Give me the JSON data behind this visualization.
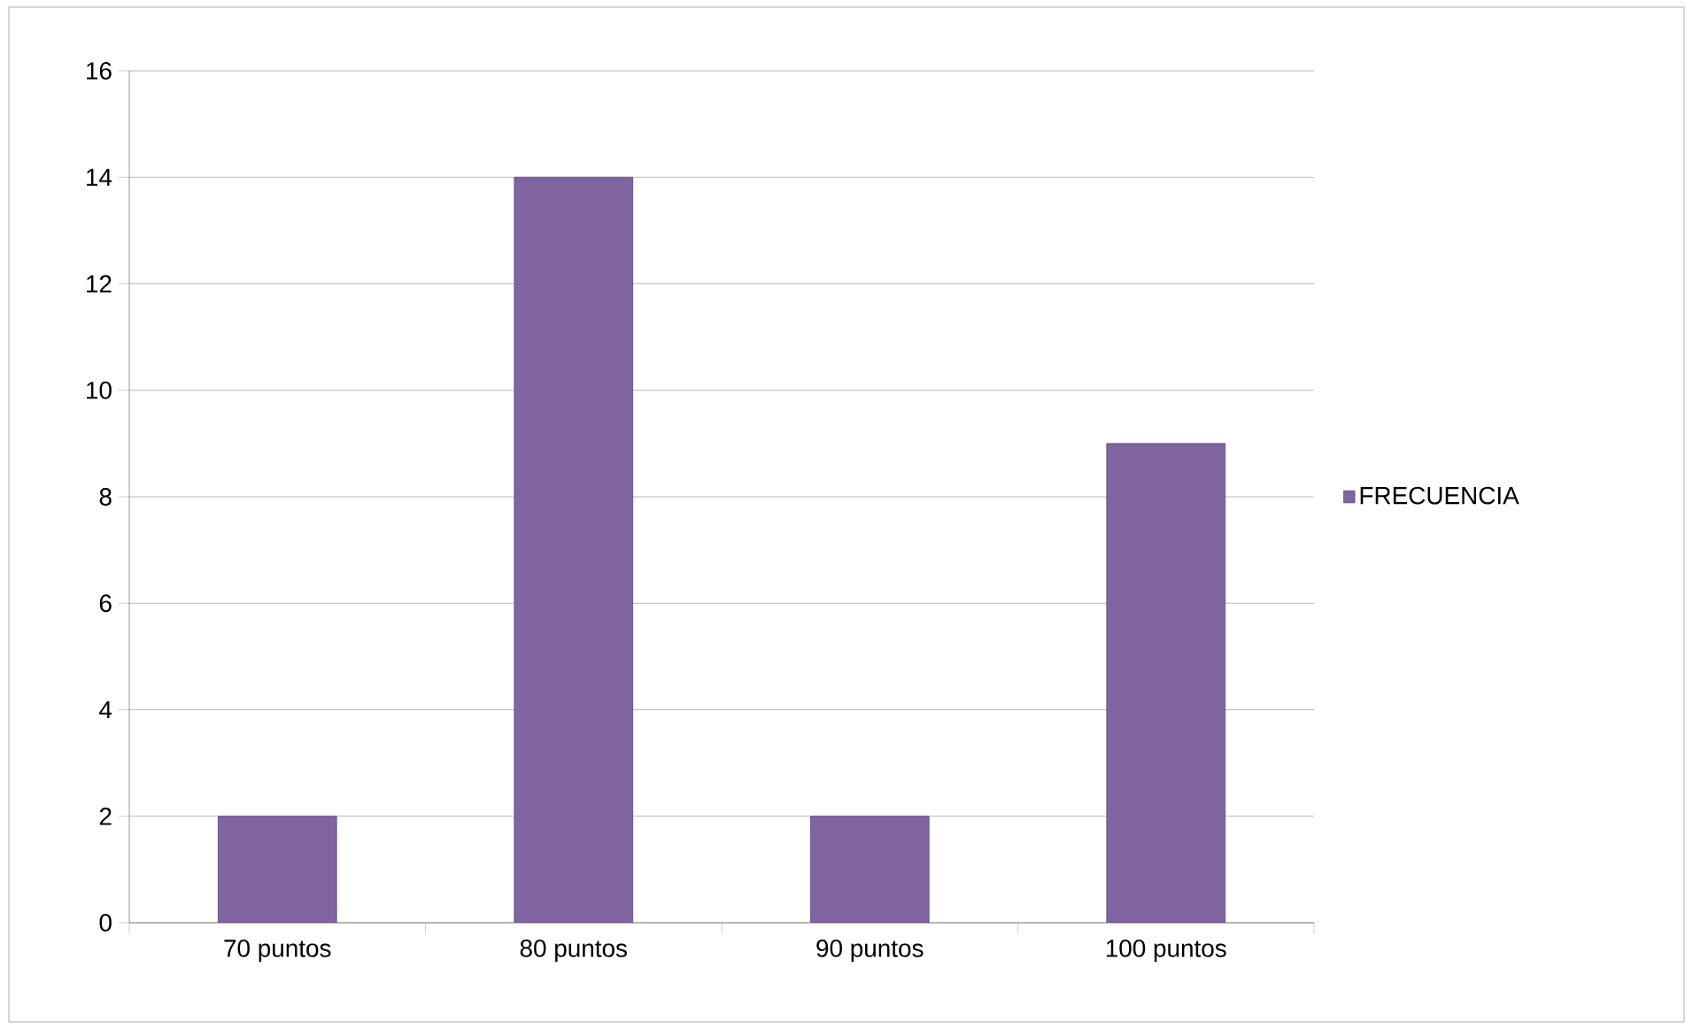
{
  "chart_data": {
    "type": "bar",
    "categories": [
      "70 puntos",
      "80 puntos",
      "90 puntos",
      "100 puntos"
    ],
    "series": [
      {
        "name": "FRECUENCIA",
        "color": "#8064a2",
        "values": [
          2,
          14,
          2,
          9
        ]
      }
    ],
    "ylim": [
      0,
      16
    ],
    "yticks": [
      0,
      2,
      4,
      6,
      8,
      10,
      12,
      14,
      16
    ],
    "grid": "y",
    "legend": "right"
  }
}
